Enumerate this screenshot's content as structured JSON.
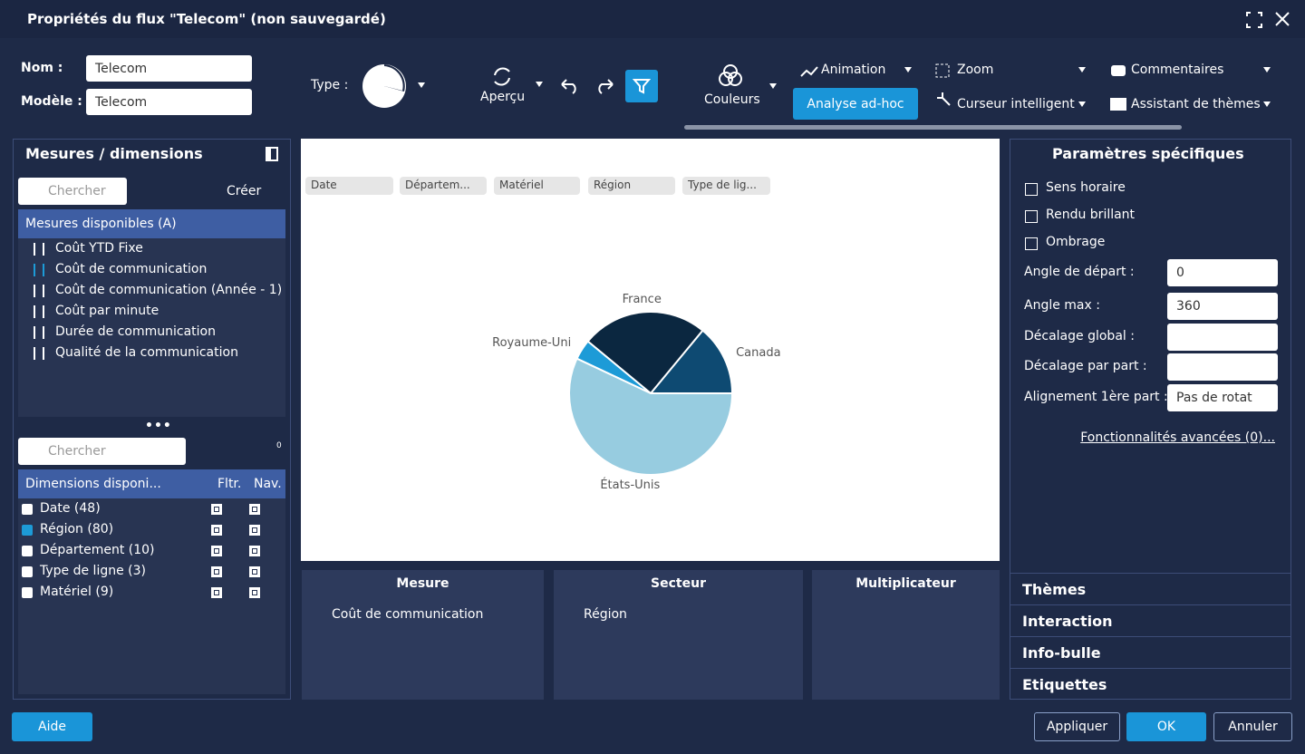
{
  "window": {
    "title": "Propriétés du flux \"Telecom\" (non sauvegardé)"
  },
  "toolbar": {
    "name_label": "Nom :",
    "name_value": "Telecom",
    "model_label": "Modèle :",
    "model_value": "Telecom",
    "type_label": "Type :",
    "apercu": "Aperçu",
    "couleurs": "Couleurs",
    "animation": "Animation",
    "zoom": "Zoom",
    "commentaires": "Commentaires",
    "analyse": "Analyse ad-hoc",
    "curseur": "Curseur intelligent",
    "assistant": "Assistant de thèmes"
  },
  "left_panel": {
    "title": "Mesures / dimensions",
    "search_placeholder": "Chercher",
    "create": "Créer",
    "measures_header": "Mesures disponibles (A)",
    "measures": [
      "Coût YTD Fixe",
      "Coût de communication",
      "Coût de communication (Année - 1)",
      "Coût par minute",
      "Durée de communication",
      "Qualité de la communication"
    ],
    "search2_placeholder": "Chercher",
    "filter_count": 0,
    "dimensions_header": [
      "Dimensions disponi...",
      "Fltr.",
      "Nav."
    ],
    "dimensions": [
      "Date (48)",
      "Région (80)",
      "Département (10)",
      "Type de ligne (3)",
      "Matériel (9)"
    ]
  },
  "chart": {
    "filters": [
      "Date",
      "Départem...",
      "Matériel",
      "Région",
      "Type de lig..."
    ],
    "pie": {
      "type": "pie",
      "categories": [
        "Canada",
        "France",
        "Royaume-Uni",
        "États-Unis"
      ],
      "values": [
        14,
        25,
        4,
        57
      ],
      "colors": [
        "#0e4a72",
        "#0b2740",
        "#1d9bd7",
        "#97cce0"
      ]
    }
  },
  "drop_zones": [
    {
      "title": "Mesure",
      "item": "Coût de communication"
    },
    {
      "title": "Secteur",
      "item": "Région"
    },
    {
      "title": "Multiplicateur"
    }
  ],
  "right_panel": {
    "title": "Paramètres spécifiques",
    "checkboxes": [
      "Sens horaire",
      "Rendu brillant",
      "Ombrage"
    ],
    "fields": [
      {
        "label": "Angle de départ :",
        "value": 0
      },
      {
        "label": "Angle max :",
        "value": 360
      },
      {
        "label": "Décalage global :"
      },
      {
        "label": "Décalage par part :"
      },
      {
        "label": "Alignement 1ère part :",
        "value": "Pas de rotat"
      }
    ],
    "advanced": "Fonctionnalités avancées (0)...",
    "sections": [
      "Thèmes",
      "Interaction",
      "Info-bulle",
      "Etiquettes"
    ]
  },
  "footer": {
    "help": "Aide",
    "apply": "Appliquer",
    "ok": "OK",
    "cancel": "Annuler"
  }
}
